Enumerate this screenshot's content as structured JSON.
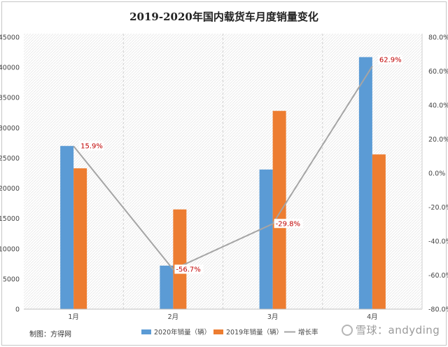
{
  "chart_data": {
    "type": "bar",
    "title": "2019-2020年国内载货车月度销量变化",
    "categories": [
      "1月",
      "2月",
      "3月",
      "4月"
    ],
    "series": [
      {
        "name": "2020年销量（辆）",
        "kind": "bar",
        "axis": "left",
        "color": "#5b9bd5",
        "values": [
          27000,
          7200,
          23100,
          41700
        ]
      },
      {
        "name": "2019年销量（辆）",
        "kind": "bar",
        "axis": "left",
        "color": "#ed7d31",
        "values": [
          23300,
          16500,
          32800,
          25600
        ]
      },
      {
        "name": "增长率",
        "kind": "line",
        "axis": "right",
        "color": "#a5a5a5",
        "values": [
          15.9,
          -56.7,
          -29.8,
          62.9
        ],
        "labels": [
          "15.9%",
          "-56.7%",
          "-29.8%",
          "62.9%"
        ],
        "label_color": "#c00000"
      }
    ],
    "y_left": {
      "min": 0,
      "max": 45000,
      "step": 5000,
      "ticks": [
        "0",
        "5000",
        "10000",
        "15000",
        "20000",
        "25000",
        "30000",
        "35000",
        "40000",
        "45000"
      ]
    },
    "y_right": {
      "min": -80,
      "max": 80,
      "step": 20,
      "ticks": [
        "-80.0%",
        "-60.0%",
        "-40.0%",
        "-20.0%",
        "0.0%",
        "20.0%",
        "40.0%",
        "60.0%",
        "80.0%"
      ]
    },
    "grid": "vertical-dashed, hatched plot background",
    "legend_position": "bottom"
  },
  "footer": {
    "credit": "制图：方得网",
    "watermark": "雪球：andyding",
    "brand": "方得网"
  },
  "colors": {
    "bar_2020": "#5b9bd5",
    "bar_2019": "#ed7d31",
    "growth_line": "#a5a5a5",
    "label_text": "#c00000"
  }
}
